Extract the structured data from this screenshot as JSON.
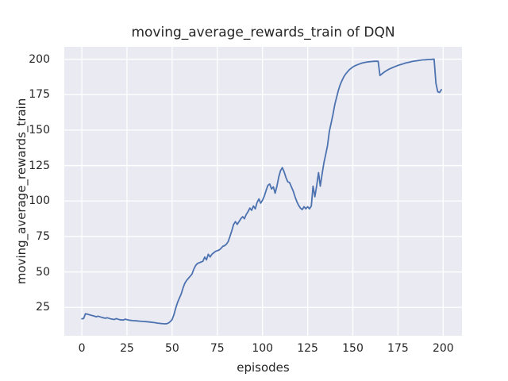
{
  "figure": {
    "background": "#ffffff"
  },
  "chart_data": {
    "type": "line",
    "title": "moving_average_rewards_train of DQN",
    "xlabel": "episodes",
    "ylabel": "moving_average_rewards_train",
    "xlim": [
      -9.7,
      210.4
    ],
    "ylim": [
      5.0,
      208.7
    ],
    "xticks": [
      0,
      25,
      50,
      75,
      100,
      125,
      150,
      175,
      200
    ],
    "yticks": [
      25,
      50,
      75,
      100,
      125,
      150,
      175,
      200
    ],
    "grid": true,
    "legend": null,
    "style": {
      "axes_background": "#eaeaf2",
      "grid_color": "#ffffff",
      "line_color": "#4c72b0",
      "text_color": "#262626",
      "line_width": 1.8
    },
    "series": [
      {
        "name": "moving_average_rewards_train",
        "points": [
          [
            0,
            17.0
          ],
          [
            1,
            17.2
          ],
          [
            2,
            20.5
          ],
          [
            3,
            20.2
          ],
          [
            5,
            19.5
          ],
          [
            7,
            18.8
          ],
          [
            8,
            18.4
          ],
          [
            9,
            18.8
          ],
          [
            11,
            18.0
          ],
          [
            13,
            17.3
          ],
          [
            14,
            17.7
          ],
          [
            16,
            16.9
          ],
          [
            18,
            16.5
          ],
          [
            19,
            17.1
          ],
          [
            21,
            16.3
          ],
          [
            23,
            16.1
          ],
          [
            24,
            16.7
          ],
          [
            26,
            16.0
          ],
          [
            28,
            15.7
          ],
          [
            30,
            15.5
          ],
          [
            32,
            15.3
          ],
          [
            34,
            15.1
          ],
          [
            36,
            14.9
          ],
          [
            38,
            14.6
          ],
          [
            40,
            14.3
          ],
          [
            42,
            13.9
          ],
          [
            44,
            13.6
          ],
          [
            46,
            13.4
          ],
          [
            47,
            13.5
          ],
          [
            48,
            14.0
          ],
          [
            49,
            15.0
          ],
          [
            50,
            16.5
          ],
          [
            51,
            20.0
          ],
          [
            52,
            24.5
          ],
          [
            53,
            28.5
          ],
          [
            54,
            31.5
          ],
          [
            55,
            34.5
          ],
          [
            56,
            38.5
          ],
          [
            57,
            42.0
          ],
          [
            58,
            44.0
          ],
          [
            59,
            45.5
          ],
          [
            60,
            47.0
          ],
          [
            61,
            48.5
          ],
          [
            62,
            52.0
          ],
          [
            63,
            54.5
          ],
          [
            64,
            56.0
          ],
          [
            65,
            56.5
          ],
          [
            66,
            57.0
          ],
          [
            67,
            57.5
          ],
          [
            68,
            60.5
          ],
          [
            69,
            58.5
          ],
          [
            70,
            62.5
          ],
          [
            71,
            60.5
          ],
          [
            72,
            62.5
          ],
          [
            73,
            63.5
          ],
          [
            74,
            64.5
          ],
          [
            75,
            65.0
          ],
          [
            76,
            65.5
          ],
          [
            77,
            66.5
          ],
          [
            78,
            68.0
          ],
          [
            79,
            68.5
          ],
          [
            80,
            69.5
          ],
          [
            81,
            71.5
          ],
          [
            82,
            75.0
          ],
          [
            83,
            79.0
          ],
          [
            84,
            83.5
          ],
          [
            85,
            85.5
          ],
          [
            86,
            83.5
          ],
          [
            87,
            85.5
          ],
          [
            88,
            87.5
          ],
          [
            89,
            89.0
          ],
          [
            90,
            87.5
          ],
          [
            91,
            90.5
          ],
          [
            92,
            92.5
          ],
          [
            93,
            95.0
          ],
          [
            94,
            93.5
          ],
          [
            95,
            96.5
          ],
          [
            96,
            94.5
          ],
          [
            97,
            99.0
          ],
          [
            98,
            101.5
          ],
          [
            99,
            98.5
          ],
          [
            100,
            100.5
          ],
          [
            101,
            103.5
          ],
          [
            102,
            107.5
          ],
          [
            103,
            111.0
          ],
          [
            104,
            112.0
          ],
          [
            105,
            108.5
          ],
          [
            106,
            110.0
          ],
          [
            107,
            105.5
          ],
          [
            108,
            110.5
          ],
          [
            109,
            117.0
          ],
          [
            110,
            121.5
          ],
          [
            111,
            123.5
          ],
          [
            112,
            120.5
          ],
          [
            113,
            116.5
          ],
          [
            114,
            113.5
          ],
          [
            115,
            113.0
          ],
          [
            116,
            110.0
          ],
          [
            117,
            107.0
          ],
          [
            118,
            103.0
          ],
          [
            119,
            99.5
          ],
          [
            120,
            97.0
          ],
          [
            121,
            95.0
          ],
          [
            122,
            94.0
          ],
          [
            123,
            96.0
          ],
          [
            124,
            94.5
          ],
          [
            125,
            96.0
          ],
          [
            126,
            94.5
          ],
          [
            127,
            96.5
          ],
          [
            128,
            110.5
          ],
          [
            129,
            103.0
          ],
          [
            130,
            111.0
          ],
          [
            131,
            120.0
          ],
          [
            132,
            110.5
          ],
          [
            133,
            119.0
          ],
          [
            134,
            127.0
          ],
          [
            135,
            133.0
          ],
          [
            136,
            139.0
          ],
          [
            137,
            149.0
          ],
          [
            138,
            155.0
          ],
          [
            139,
            161.0
          ],
          [
            140,
            168.0
          ],
          [
            141,
            173.0
          ],
          [
            142,
            178.0
          ],
          [
            143,
            182.0
          ],
          [
            144,
            185.0
          ],
          [
            145,
            187.5
          ],
          [
            146,
            189.5
          ],
          [
            147,
            191.0
          ],
          [
            148,
            192.5
          ],
          [
            149,
            193.5
          ],
          [
            150,
            194.5
          ],
          [
            151,
            195.2
          ],
          [
            152,
            195.8
          ],
          [
            153,
            196.3
          ],
          [
            154,
            196.8
          ],
          [
            155,
            197.2
          ],
          [
            156,
            197.5
          ],
          [
            157,
            197.8
          ],
          [
            158,
            198.0
          ],
          [
            159,
            198.2
          ],
          [
            160,
            198.3
          ],
          [
            161,
            198.4
          ],
          [
            162,
            198.5
          ],
          [
            163,
            198.5
          ],
          [
            164,
            198.5
          ],
          [
            165,
            188.5
          ],
          [
            166,
            189.5
          ],
          [
            167,
            190.5
          ],
          [
            168,
            191.4
          ],
          [
            169,
            192.2
          ],
          [
            170,
            192.9
          ],
          [
            171,
            193.5
          ],
          [
            172,
            194.1
          ],
          [
            173,
            194.6
          ],
          [
            174,
            195.1
          ],
          [
            175,
            195.6
          ],
          [
            176,
            196.0
          ],
          [
            177,
            196.4
          ],
          [
            178,
            196.8
          ],
          [
            179,
            197.2
          ],
          [
            180,
            197.5
          ],
          [
            181,
            197.8
          ],
          [
            182,
            198.1
          ],
          [
            183,
            198.4
          ],
          [
            184,
            198.6
          ],
          [
            185,
            198.8
          ],
          [
            186,
            199.0
          ],
          [
            187,
            199.2
          ],
          [
            188,
            199.4
          ],
          [
            189,
            199.5
          ],
          [
            190,
            199.6
          ],
          [
            191,
            199.7
          ],
          [
            192,
            199.8
          ],
          [
            193,
            199.8
          ],
          [
            194,
            199.9
          ],
          [
            195,
            200.0
          ],
          [
            196,
            183.0
          ],
          [
            197,
            177.0
          ],
          [
            198,
            176.5
          ],
          [
            199,
            178.5
          ]
        ]
      }
    ]
  }
}
